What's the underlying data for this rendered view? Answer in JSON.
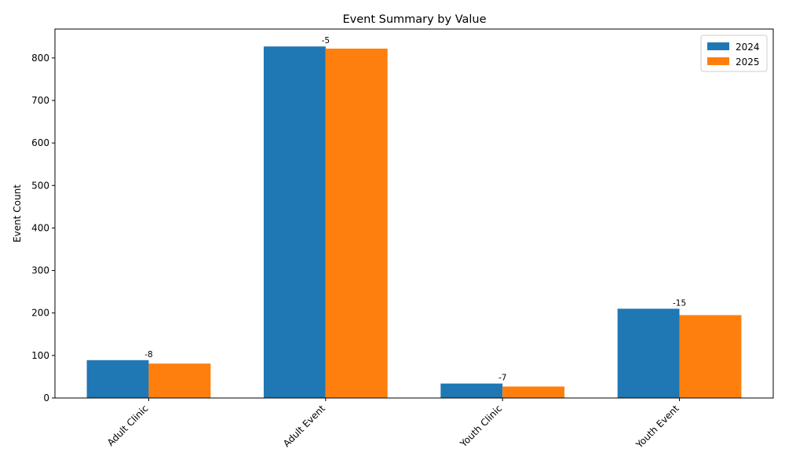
{
  "chart_data": {
    "type": "bar",
    "title": "Event Summary by Value",
    "xlabel": "",
    "ylabel": "Event Count",
    "categories": [
      "Adult Clinic",
      "Adult Event",
      "Youth Clinic",
      "Youth Event"
    ],
    "series": [
      {
        "name": "2024",
        "color": "#1f77b4",
        "values": [
          89,
          827,
          34,
          210
        ]
      },
      {
        "name": "2025",
        "color": "#ff7f0e",
        "values": [
          81,
          822,
          27,
          195
        ]
      }
    ],
    "diff_labels": [
      "-8",
      "-5",
      "-7",
      "-15"
    ],
    "ylim": [
      0,
      868
    ],
    "yticks": [
      0,
      100,
      200,
      300,
      400,
      500,
      600,
      700,
      800
    ],
    "legend": "top-right",
    "grid": false
  }
}
